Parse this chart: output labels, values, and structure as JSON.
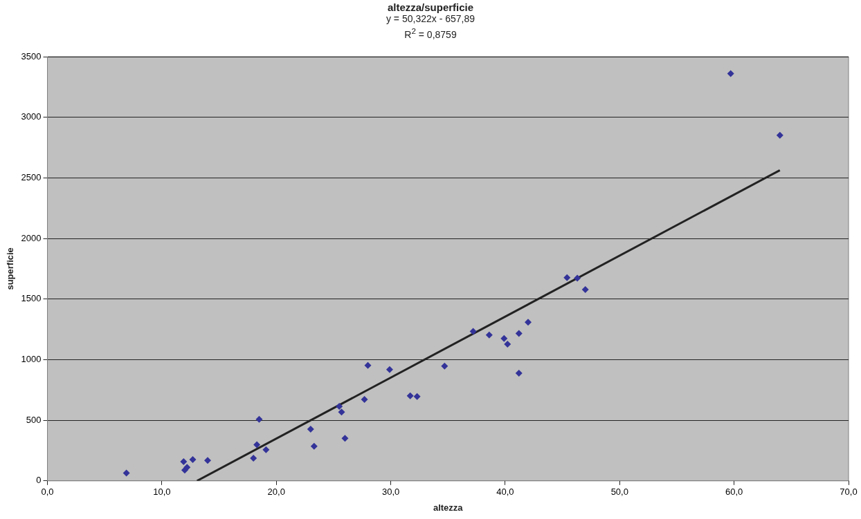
{
  "chart_data": {
    "type": "scatter",
    "title": "altezza/superficie",
    "subtitle": "y = 50,322x - 657,89",
    "annotations": [
      "R$^{2}$ = 0,8759"
    ],
    "xlabel": "altezza",
    "ylabel": "superficie",
    "series": [
      {
        "color": "#333399",
        "marker": "diamond",
        "x": [
          6.9,
          11.9,
          12.0,
          12.2,
          12.7,
          14.0,
          18.0,
          18.3,
          18.5,
          19.1,
          23.0,
          23.3,
          25.5,
          25.7,
          26.0,
          27.7,
          28.0,
          29.9,
          31.7,
          32.3,
          34.7,
          37.2,
          38.6,
          39.9,
          40.2,
          41.2,
          41.2,
          42.0,
          45.4,
          46.3,
          47.0,
          59.7,
          64.0
        ],
        "values": [
          64,
          158,
          88,
          111,
          175,
          169,
          187,
          298,
          508,
          257,
          427,
          286,
          614,
          567,
          351,
          672,
          953,
          918,
          701,
          696,
          947,
          1233,
          1204,
          1175,
          1128,
          1216,
          888,
          1309,
          1677,
          1672,
          1578,
          3361,
          2852
        ]
      },
      {
        "type": "line",
        "color": "#222222",
        "marker": "none",
        "x": [
          13.07,
          64.0
        ],
        "values": [
          0,
          2563
        ]
      }
    ],
    "xlim": [
      0,
      70
    ],
    "xticks": [
      {
        "value": 0,
        "label": "0,0"
      },
      {
        "value": 10,
        "label": "10,0"
      },
      {
        "value": 20,
        "label": "20,0"
      },
      {
        "value": 30,
        "label": "30,0"
      },
      {
        "value": 40,
        "label": "40,0"
      },
      {
        "value": 50,
        "label": "50,0"
      },
      {
        "value": 60,
        "label": "60,0"
      },
      {
        "value": 70,
        "label": "70,0"
      }
    ],
    "ylim": [
      0,
      3500
    ],
    "yticks": [
      0,
      500,
      1000,
      1500,
      2000,
      2500,
      3000,
      3500
    ],
    "grid": "y",
    "legend": false
  }
}
